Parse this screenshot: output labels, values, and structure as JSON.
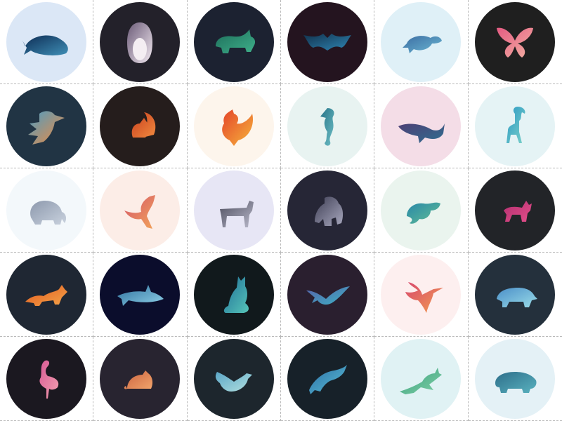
{
  "grid": {
    "tiles": [
      {
        "name": "whale-icon",
        "bg": "#dbe7f6",
        "colors": [
          "#0d2c54",
          "#3f8fb6"
        ]
      },
      {
        "name": "penguin-icon",
        "bg": "#23212a",
        "colors": [
          "#6b5b78",
          "#f2e9f0"
        ]
      },
      {
        "name": "rhino-icon",
        "bg": "#1c2231",
        "colors": [
          "#1d6d5a",
          "#3fb08a"
        ]
      },
      {
        "name": "bat-icon",
        "bg": "#24141f",
        "colors": [
          "#12324d",
          "#2f86b4"
        ]
      },
      {
        "name": "sea-turtle-icon",
        "bg": "#dff0f7",
        "colors": [
          "#3c6ea3",
          "#6bb7d3"
        ]
      },
      {
        "name": "butterfly-icon",
        "bg": "#1f1f1f",
        "colors": [
          "#e35b82",
          "#f3b1a3"
        ]
      },
      {
        "name": "toucan-icon",
        "bg": "#213444",
        "colors": [
          "#4d9dc3",
          "#f08a3f"
        ]
      },
      {
        "name": "squirrel-icon",
        "bg": "#251d1c",
        "colors": [
          "#c93f1e",
          "#f08a3f"
        ]
      },
      {
        "name": "rooster-icon",
        "bg": "#fdf5ec",
        "colors": [
          "#e4442a",
          "#f6b43c"
        ]
      },
      {
        "name": "seahorse-icon",
        "bg": "#e8f3f1",
        "colors": [
          "#267388",
          "#6fc0c6"
        ]
      },
      {
        "name": "humpback-whale-icon",
        "bg": "#f4dde7",
        "colors": [
          "#4d3f75",
          "#2f6e90"
        ]
      },
      {
        "name": "ibex-icon",
        "bg": "#e5f3f5",
        "colors": [
          "#2b98c4",
          "#7bd1c9"
        ]
      },
      {
        "name": "elephant-icon",
        "bg": "#f3f8fb",
        "colors": [
          "#8d99ad",
          "#c9d2de"
        ]
      },
      {
        "name": "kangaroo-icon",
        "bg": "#fcede7",
        "colors": [
          "#d4566a",
          "#f2a35a"
        ]
      },
      {
        "name": "zebra-icon",
        "bg": "#e7e6f5",
        "colors": [
          "#4d4d5e",
          "#b9b9ca"
        ]
      },
      {
        "name": "gorilla-icon",
        "bg": "#262636",
        "colors": [
          "#3f3f55",
          "#a7a7bd"
        ]
      },
      {
        "name": "chameleon-icon",
        "bg": "#eaf4ee",
        "colors": [
          "#2887a8",
          "#63bf95"
        ]
      },
      {
        "name": "dog-icon",
        "bg": "#222428",
        "colors": [
          "#b22f70",
          "#e44f8a"
        ]
      },
      {
        "name": "fox-icon",
        "bg": "#1f2733",
        "colors": [
          "#e2581d",
          "#f3a54a"
        ]
      },
      {
        "name": "shark-icon",
        "bg": "#0b0d2c",
        "colors": [
          "#2d6f9c",
          "#8fd0e8"
        ]
      },
      {
        "name": "cat-icon",
        "bg": "#11191c",
        "colors": [
          "#1f6d97",
          "#56c5b8"
        ]
      },
      {
        "name": "bird-in-flight-icon",
        "bg": "#2a1f2f",
        "colors": [
          "#5760a8",
          "#3db3c6"
        ]
      },
      {
        "name": "hummingbird-icon",
        "bg": "#fdefef",
        "colors": [
          "#d8486d",
          "#f29f51"
        ]
      },
      {
        "name": "polar-bear-icon",
        "bg": "#24303c",
        "colors": [
          "#4b8fc8",
          "#9adce8"
        ]
      },
      {
        "name": "flamingo-icon",
        "bg": "#1b1820",
        "colors": [
          "#d85b95",
          "#f3a0b0"
        ]
      },
      {
        "name": "mouse-icon",
        "bg": "#282430",
        "colors": [
          "#c8613f",
          "#f2a46b"
        ]
      },
      {
        "name": "duck-icon",
        "bg": "#1d262d",
        "colors": [
          "#5ba6c7",
          "#b2e0df"
        ]
      },
      {
        "name": "dolphin-icon",
        "bg": "#172129",
        "colors": [
          "#2b6ca5",
          "#5bc1d6"
        ]
      },
      {
        "name": "hare-icon",
        "bg": "#e0f2f4",
        "colors": [
          "#3aa07d",
          "#7fcfa6"
        ]
      },
      {
        "name": "hippo-icon",
        "bg": "#e4f1f6",
        "colors": [
          "#2e6e8a",
          "#59b2bf"
        ]
      }
    ]
  }
}
